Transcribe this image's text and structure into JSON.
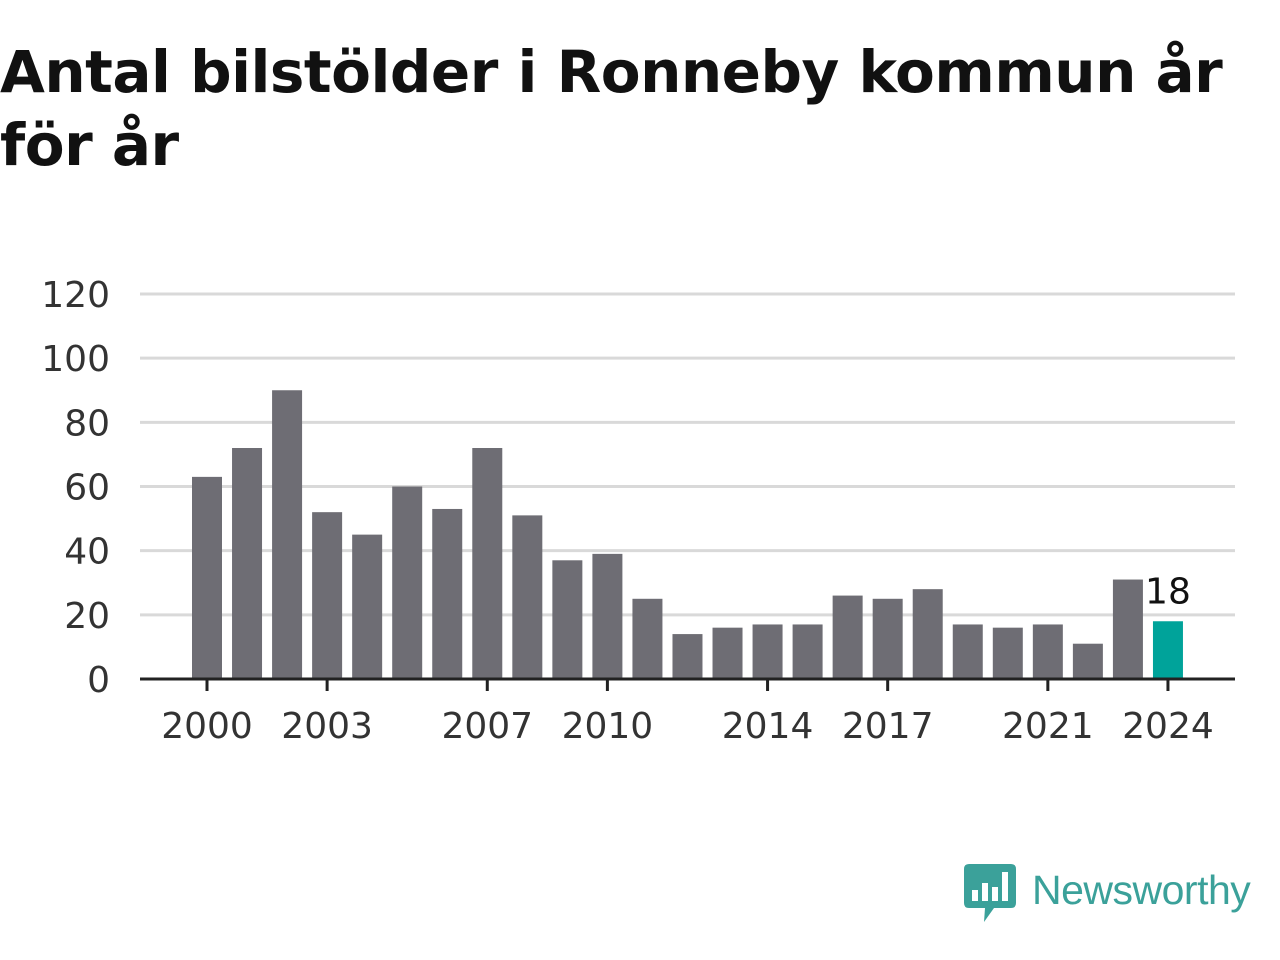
{
  "title": "Antal bilstölder i Ronneby kommun år för år",
  "brand": {
    "name": "Newsworthy",
    "color": "#3ba19a"
  },
  "colors": {
    "bar": "#6e6d74",
    "highlight": "#00a39a",
    "grid": "#d9d9d9",
    "axis": "#222222",
    "text": "#333333"
  },
  "chart_data": {
    "type": "bar",
    "title": "Antal bilstölder i Ronneby kommun år för år",
    "xlabel": "",
    "ylabel": "",
    "categories": [
      2000,
      2001,
      2002,
      2003,
      2004,
      2005,
      2006,
      2007,
      2008,
      2009,
      2010,
      2011,
      2012,
      2013,
      2014,
      2015,
      2016,
      2017,
      2018,
      2019,
      2020,
      2021,
      2022,
      2023,
      2024
    ],
    "values": [
      63,
      72,
      90,
      52,
      45,
      60,
      53,
      72,
      51,
      37,
      39,
      25,
      14,
      16,
      17,
      17,
      26,
      25,
      28,
      17,
      16,
      17,
      11,
      31,
      18
    ],
    "x_tick_labels": [
      "2000",
      "2003",
      "2007",
      "2010",
      "2014",
      "2017",
      "2021",
      "2024"
    ],
    "y_ticks": [
      0,
      20,
      40,
      60,
      80,
      100,
      120
    ],
    "ylim": [
      0,
      120
    ],
    "grid": true,
    "highlight_index": 24,
    "annotation": "18"
  }
}
